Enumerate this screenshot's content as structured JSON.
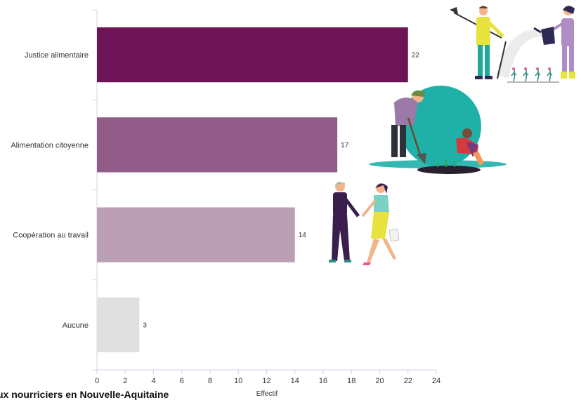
{
  "chart_data": {
    "type": "bar",
    "orientation": "horizontal",
    "categories": [
      "Justice alimentaire",
      "Alimentation citoyenne",
      "Coopération au travail",
      "Aucune"
    ],
    "values": [
      22,
      17,
      14,
      3
    ],
    "colors": [
      "#6d1456",
      "#925c88",
      "#bb9fb4",
      "#e0e0e0"
    ],
    "xlabel": "Effectif",
    "ylabel": "",
    "xlim": [
      0,
      24
    ],
    "xticks": [
      0,
      2,
      4,
      6,
      8,
      10,
      12,
      14,
      16,
      18,
      20,
      22,
      24
    ],
    "grid": false,
    "legend": "none"
  },
  "footer": {
    "text": "ux nourriciers en Nouvelle-Aquitaine"
  },
  "illustrations": [
    {
      "name": "gardeners-watering-illustration"
    },
    {
      "name": "gardeners-planting-illustration"
    },
    {
      "name": "people-handshake-illustration"
    }
  ]
}
